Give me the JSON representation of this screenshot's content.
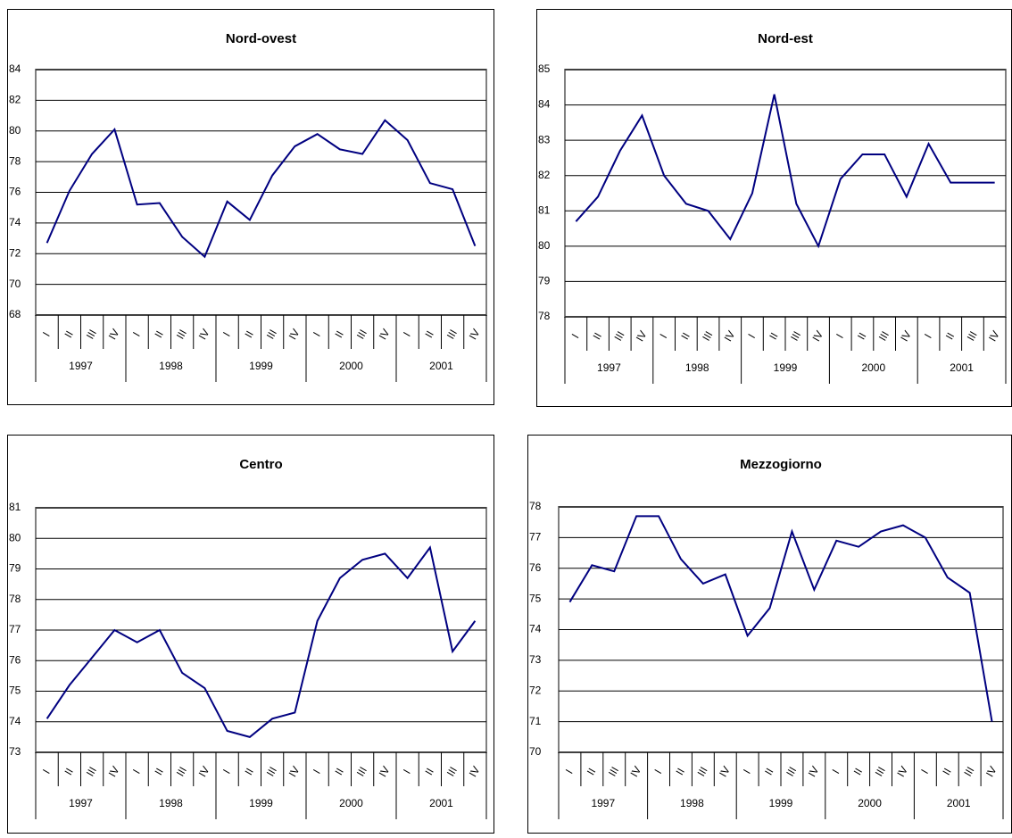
{
  "chart_data": [
    {
      "type": "line",
      "title": "Nord-ovest",
      "color": "#000080",
      "grid": true,
      "categories": [
        "I",
        "II",
        "III",
        "IV",
        "I",
        "II",
        "III",
        "IV",
        "I",
        "II",
        "III",
        "IV",
        "I",
        "II",
        "III",
        "IV",
        "I",
        "II",
        "III",
        "IV"
      ],
      "category_groups": [
        "1997",
        "1998",
        "1999",
        "2000",
        "2001"
      ],
      "values": [
        72.7,
        76.1,
        78.5,
        80.1,
        75.2,
        75.3,
        73.1,
        71.8,
        75.4,
        74.2,
        77.1,
        79.0,
        79.8,
        78.8,
        78.5,
        80.7,
        79.4,
        76.6,
        76.2,
        72.5
      ],
      "ylim": [
        68,
        84
      ],
      "yticks": [
        68,
        70,
        72,
        74,
        76,
        78,
        80,
        82,
        84
      ]
    },
    {
      "type": "line",
      "title": "Nord-est",
      "color": "#000080",
      "grid": true,
      "categories": [
        "I",
        "II",
        "III",
        "IV",
        "I",
        "II",
        "III",
        "IV",
        "I",
        "II",
        "III",
        "IV",
        "I",
        "II",
        "III",
        "IV",
        "I",
        "II",
        "III",
        "IV"
      ],
      "category_groups": [
        "1997",
        "1998",
        "1999",
        "2000",
        "2001"
      ],
      "values": [
        80.7,
        81.4,
        82.7,
        83.7,
        82.0,
        81.2,
        81.0,
        80.2,
        81.5,
        84.3,
        81.2,
        80.0,
        81.9,
        82.6,
        82.6,
        81.4,
        82.9,
        81.8,
        81.8,
        81.8
      ],
      "ylim": [
        78,
        85
      ],
      "yticks": [
        78,
        79,
        80,
        81,
        82,
        83,
        84,
        85
      ]
    },
    {
      "type": "line",
      "title": "Centro",
      "color": "#000080",
      "grid": true,
      "categories": [
        "I",
        "II",
        "III",
        "IV",
        "I",
        "II",
        "III",
        "IV",
        "I",
        "II",
        "III",
        "IV",
        "I",
        "II",
        "III",
        "IV",
        "I",
        "II",
        "III",
        "IV"
      ],
      "category_groups": [
        "1997",
        "1998",
        "1999",
        "2000",
        "2001"
      ],
      "values": [
        74.1,
        75.2,
        76.1,
        77.0,
        76.6,
        77.0,
        75.6,
        75.1,
        73.7,
        73.5,
        74.1,
        74.3,
        77.3,
        78.7,
        79.3,
        79.5,
        78.7,
        79.7,
        76.3,
        77.3
      ],
      "ylim": [
        73,
        81
      ],
      "yticks": [
        73,
        74,
        75,
        76,
        77,
        78,
        79,
        80,
        81
      ]
    },
    {
      "type": "line",
      "title": "Mezzogiorno",
      "color": "#000080",
      "grid": true,
      "categories": [
        "I",
        "II",
        "III",
        "IV",
        "I",
        "II",
        "III",
        "IV",
        "I",
        "II",
        "III",
        "IV",
        "I",
        "II",
        "III",
        "IV",
        "I",
        "II",
        "III",
        "IV"
      ],
      "category_groups": [
        "1997",
        "1998",
        "1999",
        "2000",
        "2001"
      ],
      "values": [
        74.9,
        76.1,
        75.9,
        77.7,
        77.7,
        76.3,
        75.5,
        75.8,
        73.8,
        74.7,
        77.2,
        75.3,
        76.9,
        76.7,
        77.2,
        77.4,
        77.0,
        75.7,
        75.2,
        71.0
      ],
      "ylim": [
        70,
        78
      ],
      "yticks": [
        70,
        71,
        72,
        73,
        74,
        75,
        76,
        77,
        78
      ]
    }
  ]
}
